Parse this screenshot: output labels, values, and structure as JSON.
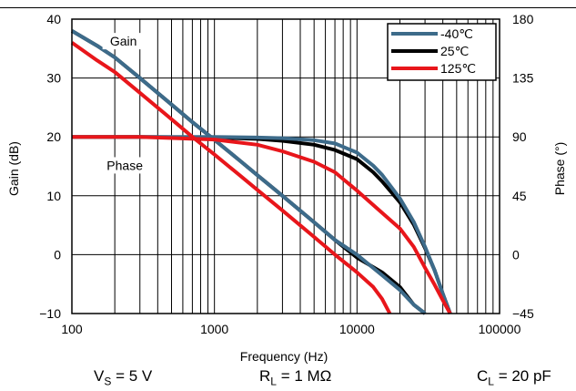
{
  "chart_data": {
    "type": "line",
    "xlabel": "Frequency (Hz)",
    "ylabel": "Gain (dB)",
    "y2label": "Phase (°)",
    "xscale": "log",
    "xlim": [
      100,
      100000
    ],
    "ylim": [
      -10,
      40
    ],
    "y2lim": [
      -45,
      180
    ],
    "grid": true,
    "legend_position": "top-right",
    "x_ticks": [
      {
        "value": 100,
        "label": "100"
      },
      {
        "value": 1000,
        "label": "1000"
      },
      {
        "value": 10000,
        "label": "10000"
      },
      {
        "value": 100000,
        "label": "100000"
      }
    ],
    "y_ticks": [
      {
        "value": -10,
        "label": "−10"
      },
      {
        "value": 0,
        "label": "0"
      },
      {
        "value": 10,
        "label": "10"
      },
      {
        "value": 20,
        "label": "20"
      },
      {
        "value": 30,
        "label": "30"
      },
      {
        "value": 40,
        "label": "40"
      }
    ],
    "y2_ticks": [
      {
        "value": -45,
        "label": "−45"
      },
      {
        "value": 0,
        "label": "0"
      },
      {
        "value": 45,
        "label": "45"
      },
      {
        "value": 90,
        "label": "90"
      },
      {
        "value": 135,
        "label": "135"
      },
      {
        "value": 180,
        "label": "180"
      }
    ],
    "annotations": [
      {
        "text": "Gain",
        "x": 230,
        "y": 35.8
      },
      {
        "text": "Phase",
        "x": 235,
        "y": 14.7
      }
    ],
    "series": [
      {
        "name": "-40℃",
        "color": "#3d6b8a",
        "gain": {
          "x": [
            100,
            150,
            200,
            300,
            500,
            700,
            1000,
            1500,
            2000,
            3000,
            5000,
            7000,
            10000,
            15000,
            20000,
            25000,
            30000
          ],
          "y": [
            38,
            35.5,
            33.5,
            30,
            25.5,
            22.5,
            19.5,
            16,
            13.5,
            10,
            5.5,
            2.5,
            0,
            -3.5,
            -6,
            -8.5,
            -10
          ]
        },
        "phase": {
          "x": [
            100,
            300,
            1000,
            2000,
            3000,
            5000,
            7000,
            10000,
            13000,
            15000,
            20000,
            25000,
            30000,
            35000,
            40000,
            45000
          ],
          "y": [
            90,
            90,
            90,
            89.5,
            89,
            87.5,
            85,
            78,
            68,
            61,
            43,
            25,
            6,
            -12,
            -30,
            -45
          ]
        }
      },
      {
        "name": "25℃",
        "color": "#000000",
        "gain": {
          "x": [
            100,
            150,
            200,
            300,
            500,
            700,
            1000,
            1500,
            2000,
            3000,
            5000,
            7000,
            10000,
            15000,
            20000,
            25000,
            30000
          ],
          "y": [
            38,
            35.5,
            33.5,
            30,
            25.5,
            22.5,
            19.5,
            16,
            13.5,
            10,
            5.5,
            2.5,
            -0.5,
            -3,
            -5.5,
            -8.5,
            -10
          ]
        },
        "phase": {
          "x": [
            100,
            300,
            1000,
            2000,
            3000,
            5000,
            7000,
            10000,
            13000,
            15000,
            20000,
            25000,
            30000,
            35000,
            40000,
            45000
          ],
          "y": [
            90,
            90,
            89.5,
            88.5,
            87,
            84,
            80,
            73,
            63,
            56,
            40,
            23,
            5,
            -12,
            -30,
            -45
          ]
        }
      },
      {
        "name": "125℃",
        "color": "#e8161b",
        "gain": {
          "x": [
            100,
            150,
            200,
            300,
            500,
            700,
            1000,
            1500,
            2000,
            3000,
            5000,
            7000,
            10000,
            13000,
            15000,
            17000
          ],
          "y": [
            36,
            33,
            31,
            27.5,
            23,
            20,
            17,
            13.5,
            11,
            7.5,
            3,
            0,
            -3,
            -5.5,
            -7.5,
            -10
          ]
        },
        "phase": {
          "x": [
            100,
            300,
            1000,
            2000,
            3000,
            5000,
            7000,
            10000,
            15000,
            20000,
            25000,
            30000,
            35000,
            40000,
            45000
          ],
          "y": [
            90,
            90,
            88,
            84,
            79,
            71,
            63,
            49,
            32,
            20,
            6,
            -10,
            -23,
            -35,
            -45
          ]
        }
      }
    ]
  },
  "conditions": {
    "vs_sym": "V",
    "vs_sub": "S",
    "vs_val": " = 5 V",
    "rl_sym": "R",
    "rl_sub": "L",
    "rl_val": " = 1 MΩ",
    "cl_sym": "C",
    "cl_sub": "L",
    "cl_val": " = 20 pF"
  }
}
